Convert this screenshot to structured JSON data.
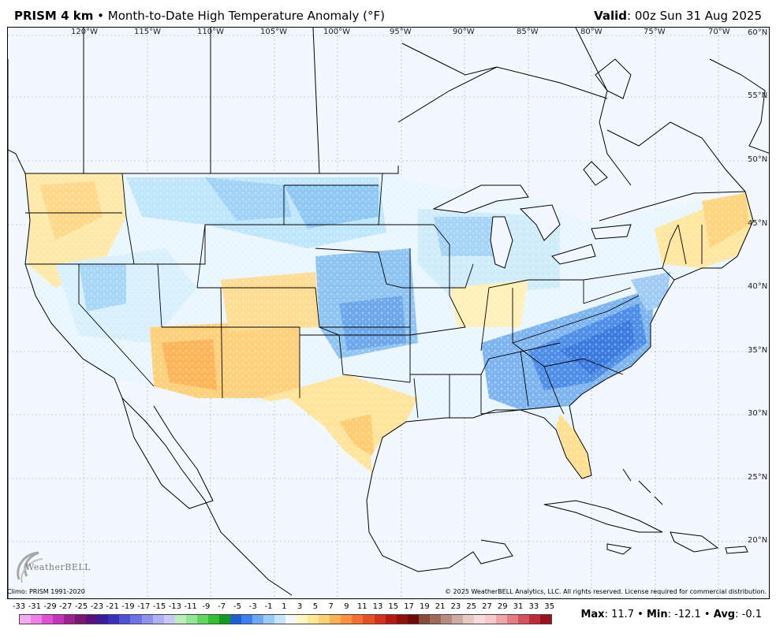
{
  "header": {
    "model": "PRISM 4 km",
    "separator": "•",
    "product": "Month-to-Date High Temperature Anomaly (°F)",
    "valid_label": "Valid",
    "valid_value": ": 00z Sun 31 Aug 2025"
  },
  "map": {
    "longitudes": [
      "120°W",
      "115°W",
      "110°W",
      "105°W",
      "100°W",
      "95°W",
      "90°W",
      "85°W",
      "80°W",
      "75°W",
      "70°W"
    ],
    "latitudes": [
      "60°N",
      "55°N",
      "50°N",
      "45°N",
      "40°N",
      "35°N",
      "30°N",
      "25°N",
      "20°N"
    ]
  },
  "logo": {
    "text": "WeatherBELL"
  },
  "footer": {
    "climo": "Climo: PRISM 1991-2020",
    "copyright": "© 2025 WeatherBELL Analytics, LLC. All rights reserved. License required for commercial distribution."
  },
  "legend": {
    "labels": [
      "-33",
      "-31",
      "-29",
      "-27",
      "-25",
      "-23",
      "-21",
      "-19",
      "-17",
      "-15",
      "-13",
      "-11",
      "-9",
      "-7",
      "-5",
      "-3",
      "-1",
      "1",
      "3",
      "5",
      "7",
      "9",
      "11",
      "13",
      "15",
      "17",
      "19",
      "21",
      "23",
      "25",
      "27",
      "29",
      "31",
      "33",
      "35"
    ],
    "colors": [
      "#f7a8f0",
      "#f07ee6",
      "#e050d6",
      "#c830c0",
      "#a0208f",
      "#7a1670",
      "#5a1080",
      "#3c1aa0",
      "#3a2fc0",
      "#5050d8",
      "#7070e8",
      "#9090f0",
      "#b0b0f5",
      "#c8c8fa",
      "#b8f0b8",
      "#90e890",
      "#60d860",
      "#30c030",
      "#109a20",
      "#1a5fd8",
      "#3c80f0",
      "#6aa8f8",
      "#9ccaf8",
      "#c8e6fa",
      "#f5f7ff",
      "#fff8c0",
      "#ffe890",
      "#ffd070",
      "#ffb050",
      "#ff9040",
      "#f87030",
      "#e85020",
      "#d83018",
      "#b81810",
      "#901008",
      "#700808",
      "#8a4a3a",
      "#a06858",
      "#b88a80",
      "#d0aaa4",
      "#e6c8c4",
      "#f4dcdc",
      "#f7c8cc",
      "#f0a4aa",
      "#e87a84",
      "#d8505c",
      "#c02a38",
      "#9a1020"
    ]
  },
  "stats": {
    "max_label": "Max",
    "max_value": ": 11.7",
    "sep1": " • ",
    "min_label": "Min",
    "min_value": ": -12.1",
    "sep2": " • ",
    "avg_label": "Avg",
    "avg_value": ": -0.1"
  }
}
